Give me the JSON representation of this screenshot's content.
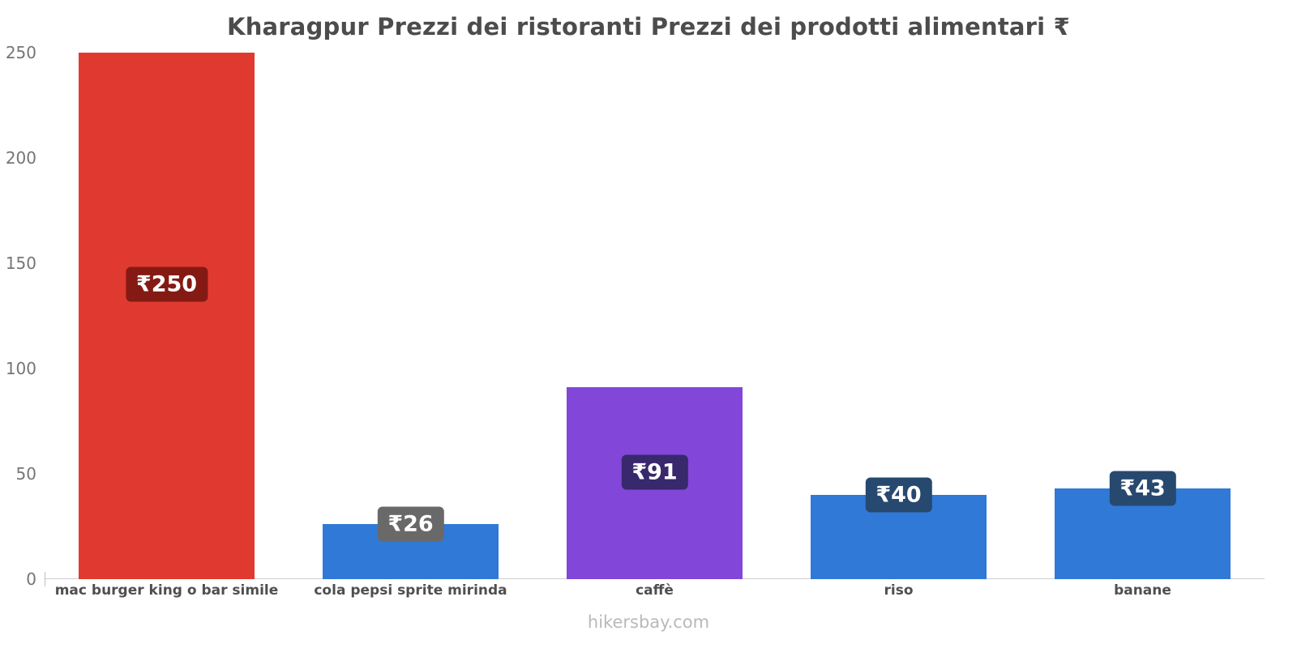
{
  "title": "Kharagpur Prezzi dei ristoranti Prezzi dei prodotti alimentari ₹",
  "footer": "hikersbay.com",
  "chart_data": {
    "type": "bar",
    "title": "Kharagpur Prezzi dei ristoranti Prezzi dei prodotti alimentari ₹",
    "categories": [
      "mac burger king o bar simile",
      "cola pepsi sprite mirinda",
      "caffè",
      "riso",
      "banane"
    ],
    "values": [
      250,
      26,
      91,
      40,
      43
    ],
    "value_labels": [
      "₹250",
      "₹26",
      "₹91",
      "₹40",
      "₹43"
    ],
    "currency": "₹",
    "bar_colors": [
      "#e03a30",
      "#3079d6",
      "#8246d8",
      "#3079d6",
      "#3079d6"
    ],
    "label_badge_colors": [
      "#841a13",
      "#696969",
      "#37296b",
      "#27496f",
      "#27496f"
    ],
    "yticks": [
      0,
      50,
      100,
      150,
      200,
      250
    ],
    "ylim": [
      0,
      250
    ],
    "xlabel": "",
    "ylabel": "",
    "grid": false,
    "legend": false,
    "watermark": "hikersbay.com"
  }
}
